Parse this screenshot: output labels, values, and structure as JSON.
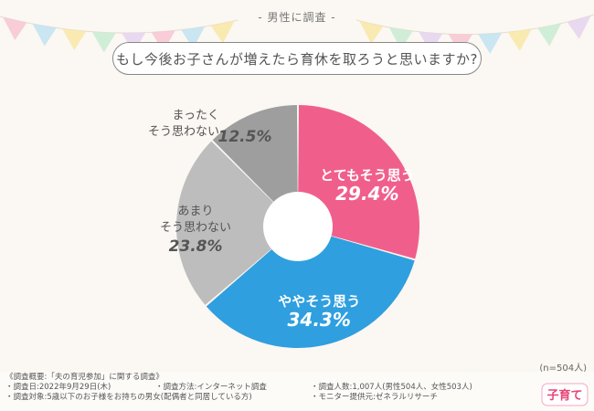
{
  "header": {
    "tag": "- 男性に調査 -",
    "question": "もし今後お子さんが増えたら育休を取ろうと思いますか?"
  },
  "chart_data": {
    "type": "pie",
    "title": "",
    "categories": [
      "とてもそう思う",
      "ややそう思う",
      "あまりそう思わない",
      "まったくそう思わない"
    ],
    "label_lines": [
      [
        "とてもそう思う"
      ],
      [
        "ややそう思う"
      ],
      [
        "あまり",
        "そう思わない"
      ],
      [
        "まったく",
        "そう思わない"
      ]
    ],
    "values": [
      29.4,
      34.3,
      23.8,
      12.5
    ],
    "value_labels": [
      "29.4%",
      "34.3%",
      "23.8%",
      "12.5%"
    ],
    "colors": [
      "#f05f8c",
      "#2f9fdf",
      "#bdbdbd",
      "#9e9e9e"
    ],
    "donut": true,
    "start": "12 o'clock",
    "direction": "clockwise"
  },
  "sample": "(n=504人)",
  "footer": {
    "title": "《調査概要:「夫の育児参加」に関する調査》",
    "items": [
      "・調査日:2022年9月29日(木)",
      "・調査方法:インターネット調査",
      "・調査人数:1,007人(男性504人、女性503人)",
      "・調査対象:5歳以下のお子様をお持ちの男女(配偶者と同居している方)",
      "・モニター提供元:ゼネラルリサーチ"
    ]
  },
  "logo": {
    "text": "子育て",
    "icon": "kosodate-logo-icon"
  }
}
